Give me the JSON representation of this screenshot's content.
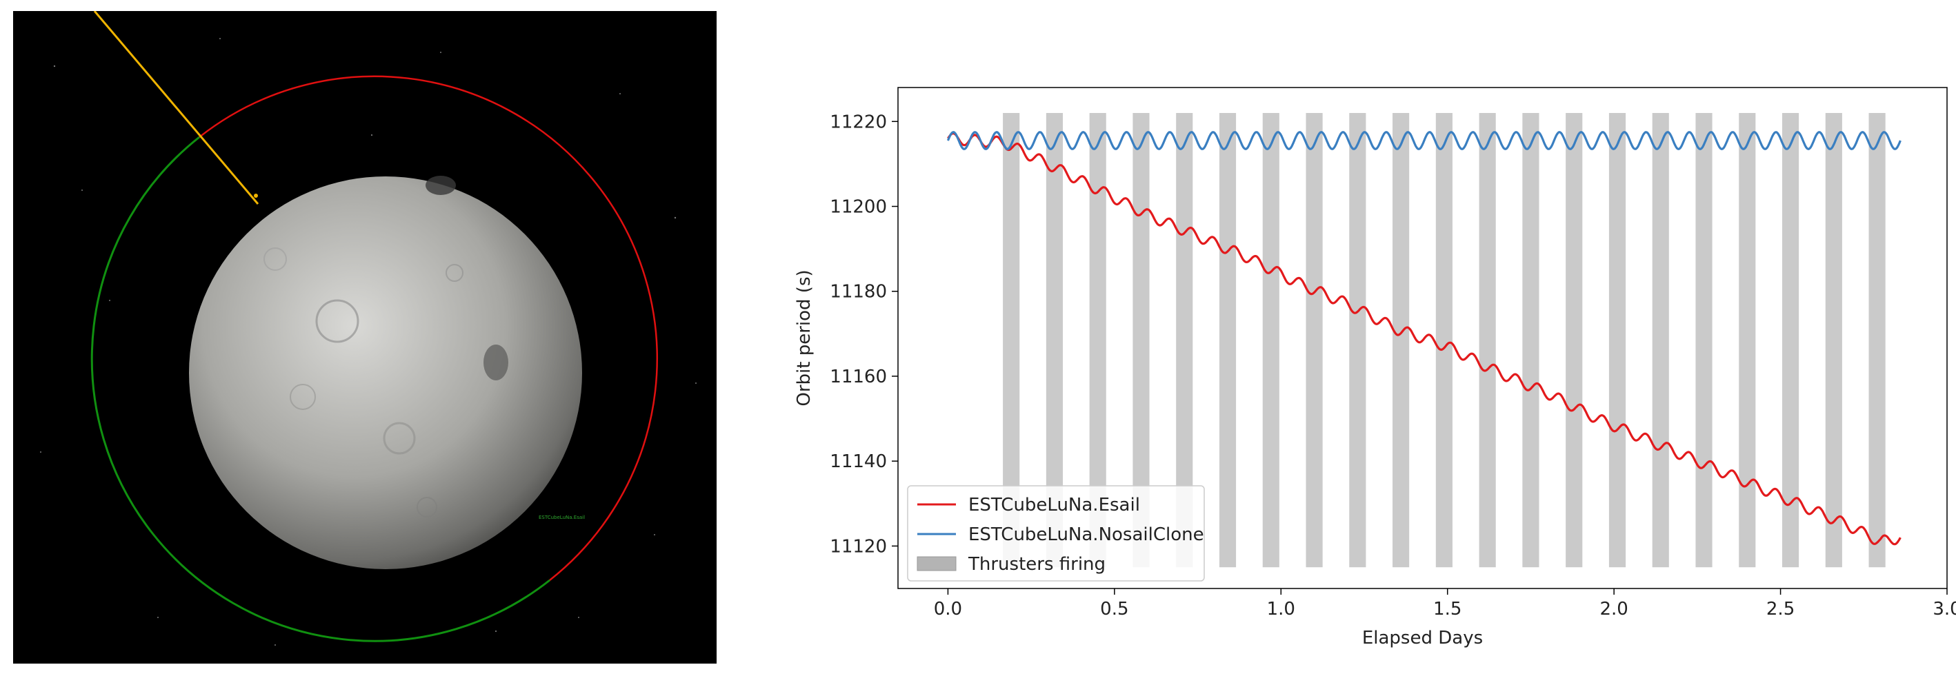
{
  "scene": {
    "label": "ESTCubeLuNa.Esail"
  },
  "chart_data": {
    "type": "line",
    "xlabel": "Elapsed Days",
    "ylabel": "Orbit period (s)",
    "xlim": [
      -0.15,
      3.0
    ],
    "ylim": [
      11110,
      11228
    ],
    "xticks": [
      0.0,
      0.5,
      1.0,
      1.5,
      2.0,
      2.5,
      3.0
    ],
    "xtick_labels": [
      "0.0",
      "0.5",
      "1.0",
      "1.5",
      "2.0",
      "2.5",
      "3.0"
    ],
    "yticks": [
      11120,
      11140,
      11160,
      11180,
      11200,
      11220
    ],
    "ytick_labels": [
      "11120",
      "11140",
      "11160",
      "11180",
      "11200",
      "11220"
    ],
    "legend_placement": "lower-left",
    "series": [
      {
        "name": "ESTCubeLuNa.Esail",
        "color": "#e31a1c",
        "x": [
          0.0,
          0.17,
          0.3,
          0.45,
          0.6,
          0.75,
          0.9,
          1.05,
          1.2,
          1.35,
          1.5,
          1.65,
          1.8,
          1.95,
          2.1,
          2.25,
          2.4,
          2.55,
          2.7,
          2.8,
          2.86
        ],
        "y": [
          11216,
          11215,
          11210,
          11204,
          11198,
          11193,
          11188,
          11182,
          11177,
          11171,
          11167,
          11161,
          11156,
          11150,
          11145,
          11140,
          11135,
          11130,
          11125,
          11121,
          11122
        ]
      },
      {
        "name": "ESTCubeLuNa.NosailClone",
        "color": "#3a7fc1",
        "x": [
          0.0,
          2.86
        ],
        "y": [
          11215.5,
          11215.5
        ],
        "oscillation_amplitude": 2
      }
    ],
    "thrusters": {
      "name": "Thrusters firing",
      "color": "#b4b4b4",
      "y_range": [
        11115,
        11222
      ],
      "intervals": [
        [
          0.165,
          0.215
        ],
        [
          0.295,
          0.345
        ],
        [
          0.425,
          0.475
        ],
        [
          0.555,
          0.605
        ],
        [
          0.685,
          0.735
        ],
        [
          0.815,
          0.865
        ],
        [
          0.945,
          0.995
        ],
        [
          1.075,
          1.125
        ],
        [
          1.205,
          1.255
        ],
        [
          1.335,
          1.385
        ],
        [
          1.465,
          1.515
        ],
        [
          1.595,
          1.645
        ],
        [
          1.725,
          1.775
        ],
        [
          1.855,
          1.905
        ],
        [
          1.985,
          2.035
        ],
        [
          2.115,
          2.165
        ],
        [
          2.245,
          2.295
        ],
        [
          2.375,
          2.425
        ],
        [
          2.505,
          2.555
        ],
        [
          2.635,
          2.685
        ],
        [
          2.765,
          2.815
        ]
      ]
    }
  }
}
